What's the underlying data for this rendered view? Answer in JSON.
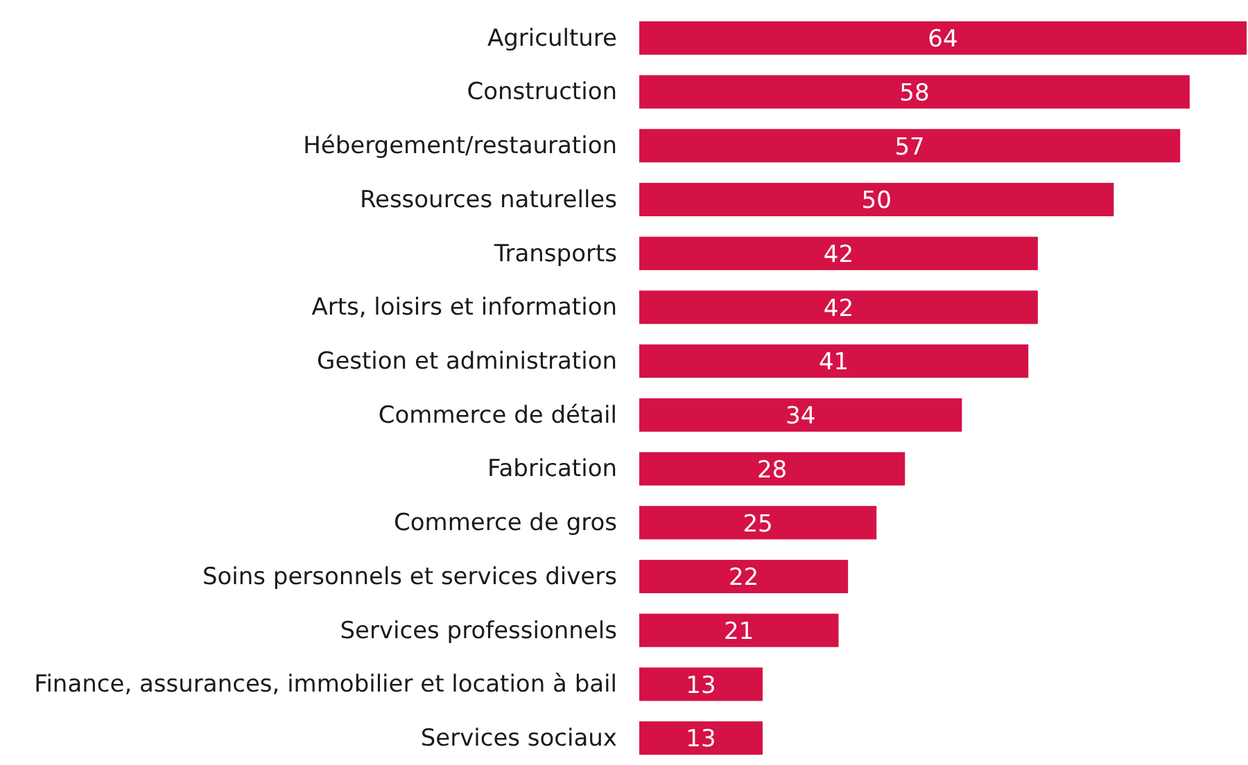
{
  "chart_data": {
    "type": "bar",
    "orientation": "horizontal",
    "data_labels": true,
    "color": "#d41246",
    "categories": [
      "Agriculture",
      "Construction",
      "Hébergement/restauration",
      "Ressources naturelles",
      "Transports",
      "Arts, loisirs et information",
      "Gestion et administration",
      "Commerce de détail",
      "Fabrication",
      "Commerce de gros",
      "Soins personnels et services divers",
      "Services professionnels",
      "Finance, assurances, immobilier et location à bail",
      "Services sociaux"
    ],
    "values": [
      64,
      58,
      57,
      50,
      42,
      42,
      41,
      34,
      28,
      25,
      22,
      21,
      13,
      13
    ]
  }
}
